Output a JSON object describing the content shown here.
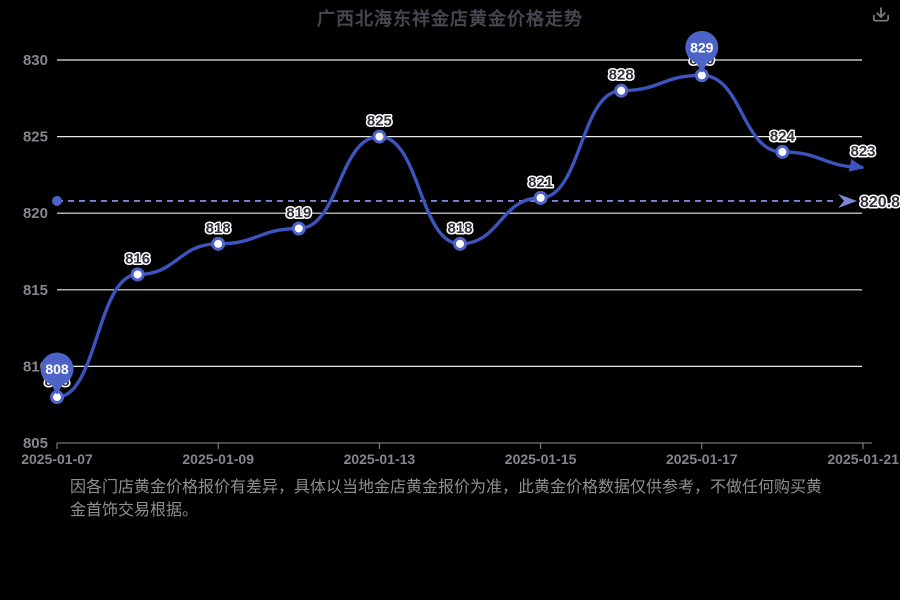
{
  "header": {
    "title": "广西北海东祥金店黄金价格走势"
  },
  "toolbar": {
    "download_icon": "download-icon"
  },
  "chart_data": {
    "type": "line",
    "title": "广西北海东祥金店黄金价格走势",
    "x_tick_labels": [
      "2025-01-07",
      "2025-01-09",
      "2025-01-13",
      "2025-01-15",
      "2025-01-17",
      "2025-01-21"
    ],
    "x_tick_point_indices": [
      0,
      2,
      4,
      6,
      8,
      10
    ],
    "values": [
      808,
      816,
      818,
      819,
      825,
      818,
      821,
      828,
      829,
      824,
      823
    ],
    "point_labels": [
      "808",
      "816",
      "818",
      "819",
      "825",
      "818",
      "821",
      "828",
      "829",
      "824",
      "823"
    ],
    "y_ticks": [
      805,
      810,
      815,
      820,
      825,
      830
    ],
    "ylim": [
      805,
      830
    ],
    "grid": true,
    "legend": false,
    "average_line": {
      "value": 820.8,
      "label": "820.8"
    },
    "mark_min": {
      "index": 0,
      "label": "808"
    },
    "mark_max": {
      "index": 8,
      "label": "829"
    }
  },
  "footer": {
    "note": "因各门店黄金价格报价有差异，具体以当地金店黄金报价为准，此黄金价格数据仅供参考，不做任何购买黄金首饰交易根据。"
  },
  "colors": {
    "background": "#000000",
    "line": "#3d53bd",
    "marker": "#4d63c8",
    "marker_fill": "#ffffff",
    "dashed_line": "#7b87d9",
    "grid_line": "#e8e8e8",
    "axis": "#8f8f96",
    "axis_label": "#85858d",
    "point_label_fill": "#33333d",
    "point_label_stroke": "#ffffff",
    "balloon_text": "#ffffff",
    "title_text": "#46464f",
    "note_text": "#8f8f8f",
    "icon": "#7d7d7d"
  }
}
